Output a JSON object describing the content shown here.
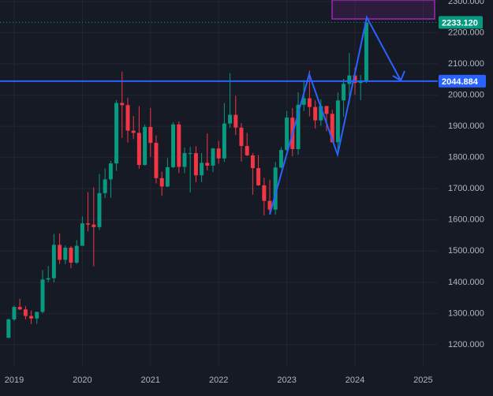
{
  "chart_data": {
    "type": "candlestick",
    "x": [
      2018.917,
      2019,
      2019.083,
      2019.167,
      2019.25,
      2019.333,
      2019.417,
      2019.5,
      2019.583,
      2019.667,
      2019.75,
      2019.833,
      2019.917,
      2020,
      2020.083,
      2020.167,
      2020.25,
      2020.333,
      2020.417,
      2020.5,
      2020.583,
      2020.667,
      2020.75,
      2020.833,
      2020.917,
      2021,
      2021.083,
      2021.167,
      2021.25,
      2021.333,
      2021.417,
      2021.5,
      2021.583,
      2021.667,
      2021.75,
      2021.833,
      2021.917,
      2022,
      2022.083,
      2022.167,
      2022.25,
      2022.333,
      2022.417,
      2022.5,
      2022.583,
      2022.667,
      2022.75,
      2022.833,
      2022.917,
      2023,
      2023.083,
      2023.167,
      2023.25,
      2023.333,
      2023.417,
      2023.5,
      2023.583,
      2023.667,
      2023.75,
      2023.833,
      2023.917,
      2024,
      2024.083,
      2024.167
    ],
    "open": [
      1222,
      1281,
      1321,
      1313,
      1292,
      1284,
      1305,
      1409,
      1413,
      1520,
      1472,
      1511,
      1463,
      1517,
      1589,
      1585,
      1577,
      1686,
      1730,
      1781,
      1975,
      1968,
      1886,
      1879,
      1776,
      1898,
      1847,
      1734,
      1707,
      1769,
      1906,
      1770,
      1814,
      1814,
      1743,
      1783,
      1774,
      1829,
      1797,
      1909,
      1937,
      1896,
      1837,
      1807,
      1766,
      1711,
      1661,
      1633,
      1768,
      1824,
      1928,
      1827,
      1969,
      1990,
      1962,
      1919,
      1965,
      1940,
      1849,
      1983,
      2036,
      2063,
      2039,
      2044
    ],
    "high": [
      1284,
      1326,
      1347,
      1324,
      1310,
      1306,
      1439,
      1452,
      1555,
      1557,
      1518,
      1516,
      1535,
      1611,
      1689,
      1704,
      1747,
      1765,
      1789,
      1984,
      2075,
      1992,
      1933,
      1965,
      1906,
      1959,
      1871,
      1755,
      1798,
      1913,
      1916,
      1832,
      1834,
      1836,
      1814,
      1877,
      1831,
      1853,
      1974,
      2070,
      1998,
      1910,
      1879,
      1814,
      1808,
      1735,
      1729,
      1786,
      1833,
      1949,
      1959,
      2009,
      2048,
      2079,
      1983,
      1987,
      1966,
      1953,
      2009,
      2052,
      2135,
      2088,
      2065,
      2233.12
    ],
    "low": [
      1221,
      1276,
      1311,
      1281,
      1266,
      1267,
      1301,
      1400,
      1400,
      1459,
      1458,
      1445,
      1459,
      1517,
      1563,
      1451,
      1568,
      1670,
      1671,
      1757,
      1863,
      1848,
      1859,
      1764,
      1775,
      1802,
      1717,
      1677,
      1705,
      1766,
      1750,
      1750,
      1688,
      1721,
      1721,
      1758,
      1753,
      1780,
      1786,
      1895,
      1872,
      1787,
      1805,
      1681,
      1709,
      1614,
      1617,
      1616,
      1765,
      1823,
      1804,
      1809,
      1949,
      1932,
      1893,
      1902,
      1884,
      1848,
      1810,
      1931,
      1973,
      2001,
      1984,
      2039
    ],
    "close": [
      1281,
      1321,
      1313,
      1292,
      1284,
      1305,
      1409,
      1413,
      1520,
      1472,
      1511,
      1463,
      1517,
      1589,
      1585,
      1577,
      1686,
      1730,
      1781,
      1975,
      1968,
      1886,
      1879,
      1776,
      1898,
      1847,
      1734,
      1707,
      1769,
      1906,
      1770,
      1814,
      1814,
      1743,
      1783,
      1774,
      1829,
      1797,
      1909,
      1937,
      1896,
      1837,
      1807,
      1766,
      1711,
      1661,
      1633,
      1768,
      1824,
      1928,
      1827,
      1969,
      1990,
      1962,
      1919,
      1965,
      1940,
      1849,
      1983,
      2036,
      2063,
      2039,
      2044,
      2233.12
    ],
    "up_color": "#089981",
    "down_color": "#f23645",
    "xlim": [
      2018.792,
      2025.215
    ],
    "xticks": [
      2019,
      2020,
      2021,
      2022,
      2023,
      2024,
      2025
    ],
    "ylim": [
      1129,
      2305
    ],
    "yticks": [
      {
        "value": 1200,
        "label": "1200.000"
      },
      {
        "value": 1300,
        "label": "1300.000"
      },
      {
        "value": 1400,
        "label": "1400.000"
      },
      {
        "value": 1500,
        "label": "1500.000"
      },
      {
        "value": 1600,
        "label": "1600.000"
      },
      {
        "value": 1700,
        "label": "1700.000"
      },
      {
        "value": 1800,
        "label": "1800.000"
      },
      {
        "value": 1900,
        "label": "1900.000"
      },
      {
        "value": 2000,
        "label": "2000.000"
      },
      {
        "value": 2100,
        "label": "2100.000"
      },
      {
        "value": 2200,
        "label": "2200.000"
      },
      {
        "value": 2300,
        "label": "2300.000"
      }
    ],
    "last_price": {
      "value": 2233.12,
      "label": "2233.120"
    },
    "hline": {
      "value": 2044.884,
      "label": "2044.884"
    },
    "grid": true
  }
}
